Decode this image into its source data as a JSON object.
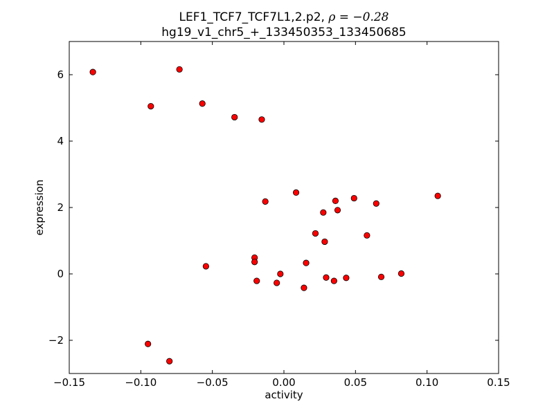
{
  "chart_data": {
    "type": "scatter",
    "title": "LEF1_TCF7_TCF7L1,2.p2, ",
    "title_rho": "ρ = −0.28",
    "subtitle": "hg19_v1_chr5_+_133450353_133450685",
    "xlabel": "activity",
    "ylabel": "expression",
    "xlim": [
      -0.15,
      0.15
    ],
    "ylim": [
      -3,
      7
    ],
    "grid": false,
    "marker_color": "#ff0000",
    "marker_edge": "#000000",
    "xticks": [
      {
        "value": -0.15,
        "label": "−0.15"
      },
      {
        "value": -0.1,
        "label": "−0.10"
      },
      {
        "value": -0.05,
        "label": "−0.05"
      },
      {
        "value": 0.0,
        "label": "0.00"
      },
      {
        "value": 0.05,
        "label": "0.05"
      },
      {
        "value": 0.1,
        "label": "0.10"
      },
      {
        "value": 0.15,
        "label": "0.15"
      }
    ],
    "yticks": [
      {
        "value": -2,
        "label": "−2"
      },
      {
        "value": 0,
        "label": "0"
      },
      {
        "value": 2,
        "label": "2"
      },
      {
        "value": 4,
        "label": "4"
      },
      {
        "value": 6,
        "label": "6"
      }
    ],
    "points": [
      {
        "x": -0.1335,
        "y": 6.08
      },
      {
        "x": -0.073,
        "y": 6.16
      },
      {
        "x": -0.093,
        "y": 5.05
      },
      {
        "x": -0.057,
        "y": 5.13
      },
      {
        "x": -0.0345,
        "y": 4.72
      },
      {
        "x": -0.0155,
        "y": 4.65
      },
      {
        "x": -0.013,
        "y": 2.18
      },
      {
        "x": 0.0085,
        "y": 2.45
      },
      {
        "x": 0.036,
        "y": 2.2
      },
      {
        "x": 0.049,
        "y": 2.28
      },
      {
        "x": 0.0645,
        "y": 2.12
      },
      {
        "x": 0.1075,
        "y": 2.35
      },
      {
        "x": 0.0275,
        "y": 1.85
      },
      {
        "x": 0.0375,
        "y": 1.92
      },
      {
        "x": 0.022,
        "y": 1.22
      },
      {
        "x": 0.0285,
        "y": 0.97
      },
      {
        "x": 0.058,
        "y": 1.16
      },
      {
        "x": -0.0545,
        "y": 0.23
      },
      {
        "x": -0.0205,
        "y": 0.49
      },
      {
        "x": -0.0205,
        "y": 0.36
      },
      {
        "x": -0.019,
        "y": -0.21
      },
      {
        "x": -0.005,
        "y": -0.27
      },
      {
        "x": -0.0025,
        "y": 0.0
      },
      {
        "x": 0.014,
        "y": -0.42
      },
      {
        "x": 0.0155,
        "y": 0.33
      },
      {
        "x": 0.0295,
        "y": -0.11
      },
      {
        "x": 0.035,
        "y": -0.21
      },
      {
        "x": 0.0435,
        "y": -0.12
      },
      {
        "x": 0.068,
        "y": -0.09
      },
      {
        "x": 0.082,
        "y": 0.01
      },
      {
        "x": -0.095,
        "y": -2.11
      },
      {
        "x": -0.08,
        "y": -2.63
      }
    ]
  }
}
